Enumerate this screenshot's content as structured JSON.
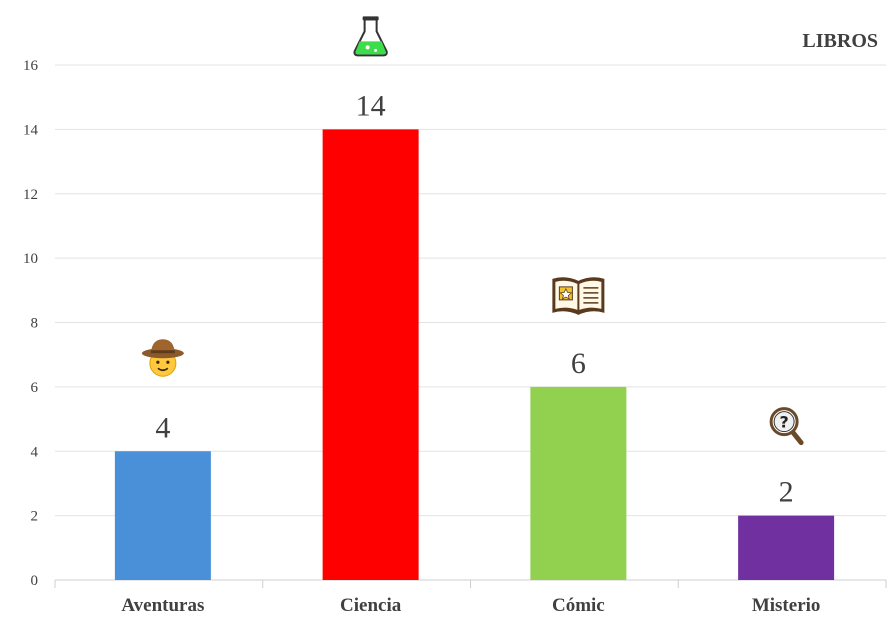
{
  "chart_data": {
    "type": "bar",
    "title": "LIBROS",
    "xlabel": "",
    "ylabel": "",
    "categories": [
      "Aventuras",
      "Ciencia",
      "Cómic",
      "Misterio"
    ],
    "values": [
      4,
      14,
      6,
      2
    ],
    "value_labels": [
      "4",
      "14",
      "6",
      "2"
    ],
    "colors": [
      "#4a90d9",
      "#ff0000",
      "#92d050",
      "#7030a0"
    ],
    "icons": [
      "explorer-icon",
      "flask-icon",
      "open-book-icon",
      "magnifying-glass-icon"
    ],
    "ylim": [
      0,
      16
    ],
    "yticks": [
      0,
      2,
      4,
      6,
      8,
      10,
      12,
      14,
      16
    ],
    "ytick_labels": [
      "0",
      "2",
      "4",
      "6",
      "8",
      "10",
      "12",
      "14",
      "16"
    ],
    "grid": true,
    "legend": "none"
  }
}
